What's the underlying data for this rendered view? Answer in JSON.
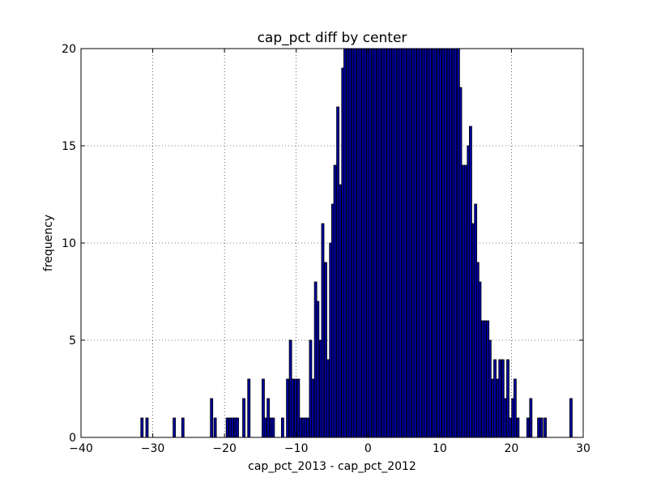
{
  "chart_data": {
    "type": "bar",
    "title": "cap_pct diff by center",
    "xlabel": "cap_pct_2013 - cap_pct_2012",
    "ylabel": "frequency",
    "xlim": [
      -40,
      30
    ],
    "ylim": [
      0,
      20
    ],
    "x_ticks": [
      "−40",
      "−30",
      "−20",
      "−10",
      "0",
      "10",
      "20",
      "30"
    ],
    "x_tick_values": [
      -40,
      -30,
      -20,
      -10,
      0,
      10,
      20,
      30
    ],
    "y_ticks": [
      "0",
      "5",
      "10",
      "15",
      "20"
    ],
    "y_tick_values": [
      0,
      5,
      10,
      15,
      20
    ],
    "grid": true,
    "bar_color": "#0000a0",
    "bin_width": 0.34,
    "bins": [
      {
        "x": -31.5,
        "y": 1
      },
      {
        "x": -30.8,
        "y": 1
      },
      {
        "x": -27.0,
        "y": 1
      },
      {
        "x": -25.8,
        "y": 1
      },
      {
        "x": -21.8,
        "y": 2
      },
      {
        "x": -21.3,
        "y": 1
      },
      {
        "x": -19.6,
        "y": 1
      },
      {
        "x": -19.2,
        "y": 1
      },
      {
        "x": -18.9,
        "y": 1
      },
      {
        "x": -18.5,
        "y": 1
      },
      {
        "x": -18.2,
        "y": 1
      },
      {
        "x": -17.3,
        "y": 2
      },
      {
        "x": -16.6,
        "y": 3
      },
      {
        "x": -14.6,
        "y": 3
      },
      {
        "x": -14.3,
        "y": 1
      },
      {
        "x": -13.9,
        "y": 2
      },
      {
        "x": -13.5,
        "y": 1
      },
      {
        "x": -13.2,
        "y": 1
      },
      {
        "x": -11.9,
        "y": 1
      },
      {
        "x": -11.2,
        "y": 3
      },
      {
        "x": -10.8,
        "y": 5
      },
      {
        "x": -10.5,
        "y": 3
      },
      {
        "x": -10.1,
        "y": 3
      },
      {
        "x": -9.7,
        "y": 3
      },
      {
        "x": -9.4,
        "y": 1
      },
      {
        "x": -9.0,
        "y": 1
      },
      {
        "x": -8.7,
        "y": 1
      },
      {
        "x": -8.4,
        "y": 1
      },
      {
        "x": -8.0,
        "y": 5
      },
      {
        "x": -7.7,
        "y": 3
      },
      {
        "x": -7.3,
        "y": 8
      },
      {
        "x": -7.0,
        "y": 7
      },
      {
        "x": -6.6,
        "y": 5
      },
      {
        "x": -6.3,
        "y": 11
      },
      {
        "x": -5.9,
        "y": 9
      },
      {
        "x": -5.6,
        "y": 4
      },
      {
        "x": -5.2,
        "y": 10
      },
      {
        "x": -4.9,
        "y": 12
      },
      {
        "x": -4.6,
        "y": 14
      },
      {
        "x": -4.2,
        "y": 17
      },
      {
        "x": -3.9,
        "y": 13
      },
      {
        "x": -3.5,
        "y": 19
      },
      {
        "x": -3.2,
        "y": 20
      },
      {
        "x": -2.8,
        "y": 20
      },
      {
        "x": -2.5,
        "y": 20
      },
      {
        "x": -2.1,
        "y": 20
      },
      {
        "x": -1.8,
        "y": 20
      },
      {
        "x": -1.4,
        "y": 20
      },
      {
        "x": -1.1,
        "y": 20
      },
      {
        "x": -0.7,
        "y": 20
      },
      {
        "x": -0.4,
        "y": 20
      },
      {
        "x": 0.0,
        "y": 20
      },
      {
        "x": 0.3,
        "y": 20
      },
      {
        "x": 0.7,
        "y": 20
      },
      {
        "x": 1.0,
        "y": 20
      },
      {
        "x": 1.4,
        "y": 20
      },
      {
        "x": 1.7,
        "y": 20
      },
      {
        "x": 2.1,
        "y": 20
      },
      {
        "x": 2.4,
        "y": 20
      },
      {
        "x": 2.8,
        "y": 20
      },
      {
        "x": 3.1,
        "y": 20
      },
      {
        "x": 3.5,
        "y": 20
      },
      {
        "x": 3.8,
        "y": 20
      },
      {
        "x": 4.2,
        "y": 20
      },
      {
        "x": 4.5,
        "y": 20
      },
      {
        "x": 4.9,
        "y": 20
      },
      {
        "x": 5.2,
        "y": 20
      },
      {
        "x": 5.6,
        "y": 20
      },
      {
        "x": 5.9,
        "y": 20
      },
      {
        "x": 6.3,
        "y": 20
      },
      {
        "x": 6.6,
        "y": 20
      },
      {
        "x": 7.0,
        "y": 20
      },
      {
        "x": 7.3,
        "y": 20
      },
      {
        "x": 7.7,
        "y": 20
      },
      {
        "x": 8.0,
        "y": 20
      },
      {
        "x": 8.4,
        "y": 20
      },
      {
        "x": 8.7,
        "y": 20
      },
      {
        "x": 9.1,
        "y": 20
      },
      {
        "x": 9.4,
        "y": 20
      },
      {
        "x": 9.8,
        "y": 20
      },
      {
        "x": 10.1,
        "y": 20
      },
      {
        "x": 10.5,
        "y": 20
      },
      {
        "x": 10.8,
        "y": 20
      },
      {
        "x": 11.2,
        "y": 20
      },
      {
        "x": 11.5,
        "y": 20
      },
      {
        "x": 11.9,
        "y": 20
      },
      {
        "x": 12.2,
        "y": 20
      },
      {
        "x": 12.6,
        "y": 20
      },
      {
        "x": 12.9,
        "y": 18
      },
      {
        "x": 13.3,
        "y": 14
      },
      {
        "x": 13.6,
        "y": 14
      },
      {
        "x": 14.0,
        "y": 15
      },
      {
        "x": 14.3,
        "y": 16
      },
      {
        "x": 14.7,
        "y": 11
      },
      {
        "x": 15.0,
        "y": 12
      },
      {
        "x": 15.3,
        "y": 9
      },
      {
        "x": 15.6,
        "y": 8
      },
      {
        "x": 16.0,
        "y": 6
      },
      {
        "x": 16.3,
        "y": 6
      },
      {
        "x": 16.7,
        "y": 6
      },
      {
        "x": 17.0,
        "y": 5
      },
      {
        "x": 17.4,
        "y": 3
      },
      {
        "x": 17.7,
        "y": 4
      },
      {
        "x": 18.1,
        "y": 3
      },
      {
        "x": 18.4,
        "y": 4
      },
      {
        "x": 18.8,
        "y": 4
      },
      {
        "x": 19.1,
        "y": 2
      },
      {
        "x": 19.5,
        "y": 4
      },
      {
        "x": 19.8,
        "y": 1
      },
      {
        "x": 20.2,
        "y": 2
      },
      {
        "x": 20.5,
        "y": 3
      },
      {
        "x": 20.9,
        "y": 1
      },
      {
        "x": 22.3,
        "y": 1
      },
      {
        "x": 22.7,
        "y": 2
      },
      {
        "x": 23.8,
        "y": 1
      },
      {
        "x": 24.2,
        "y": 1
      },
      {
        "x": 24.7,
        "y": 1
      },
      {
        "x": 28.3,
        "y": 2
      }
    ]
  }
}
